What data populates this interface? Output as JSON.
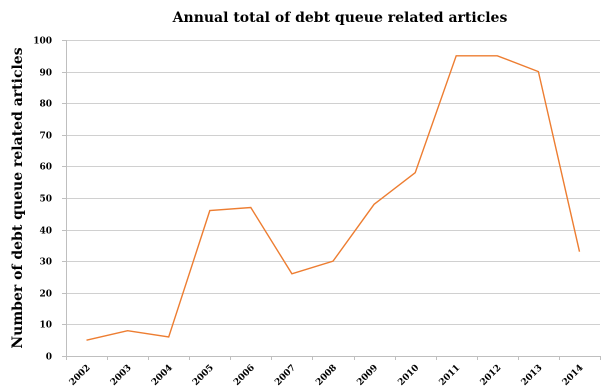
{
  "chart_data": {
    "type": "line",
    "title": "Annual total of debt queue related articles",
    "xlabel": "",
    "ylabel": "Number of debt queue related articles",
    "x": [
      "2002",
      "2003",
      "2004",
      "2005",
      "2006",
      "2007",
      "2008",
      "2009",
      "2010",
      "2011",
      "2012",
      "2013",
      "2014"
    ],
    "series": [
      {
        "values": [
          5,
          8,
          6,
          46,
          47,
          26,
          30,
          48,
          58,
          95,
          95,
          90,
          33
        ],
        "color": "#ed7d31"
      }
    ],
    "ylim": [
      0,
      100
    ],
    "yticks": [
      0,
      10,
      20,
      30,
      40,
      50,
      60,
      70,
      80,
      90,
      100
    ],
    "grid": true,
    "legend": "none"
  }
}
